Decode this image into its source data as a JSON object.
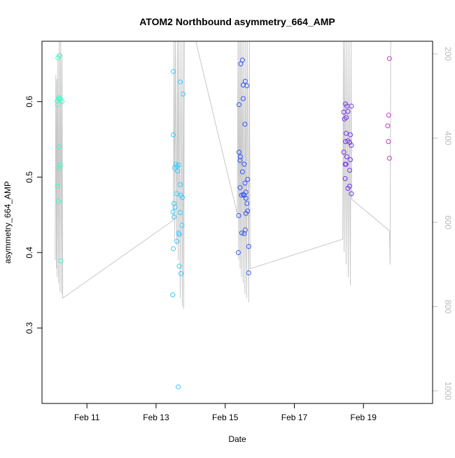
{
  "chart_data": {
    "type": "scatter",
    "title": "ATOM2 Northbound asymmetry_664_AMP",
    "xlabel": "Date",
    "ylabel": "asymmetry_664_AMP",
    "x_ticks": [
      "Feb 11",
      "Feb 13",
      "Feb 15",
      "Feb 17",
      "Feb 19"
    ],
    "x_tick_days": [
      11,
      13,
      15,
      17,
      19
    ],
    "xlim_days": [
      9.7,
      21.0
    ],
    "ylim": [
      0.2,
      0.68
    ],
    "y_ticks": [
      0.3,
      0.4,
      0.5,
      0.6
    ],
    "y2_ticks": [
      200,
      400,
      600,
      800,
      1000
    ],
    "y2lim": [
      1030,
      170
    ],
    "grid": false,
    "series": [
      {
        "color": "#33ffcc",
        "points": [
          [
            10.16,
            0.658
          ],
          [
            10.2,
            0.661
          ],
          [
            10.18,
            0.604
          ],
          [
            10.2,
            0.605
          ],
          [
            10.23,
            0.603
          ],
          [
            10.14,
            0.601
          ],
          [
            10.28,
            0.6
          ],
          [
            10.15,
            0.596
          ],
          [
            10.2,
            0.54
          ],
          [
            10.23,
            0.516
          ],
          [
            10.2,
            0.512
          ],
          [
            10.15,
            0.488
          ],
          [
            10.18,
            0.468
          ],
          [
            10.24,
            0.389
          ]
        ]
      },
      {
        "color": "#33ccff",
        "points": [
          [
            13.5,
            0.64
          ],
          [
            13.7,
            0.626
          ],
          [
            13.78,
            0.61
          ],
          [
            13.5,
            0.556
          ],
          [
            13.57,
            0.517
          ],
          [
            13.6,
            0.514
          ],
          [
            13.65,
            0.516
          ],
          [
            13.54,
            0.512
          ],
          [
            13.62,
            0.508
          ],
          [
            13.7,
            0.49
          ],
          [
            13.6,
            0.478
          ],
          [
            13.72,
            0.476
          ],
          [
            13.76,
            0.473
          ],
          [
            13.52,
            0.465
          ],
          [
            13.55,
            0.46
          ],
          [
            13.49,
            0.454
          ],
          [
            13.7,
            0.453
          ],
          [
            13.52,
            0.447
          ],
          [
            13.75,
            0.436
          ],
          [
            13.65,
            0.426
          ],
          [
            13.67,
            0.424
          ],
          [
            13.6,
            0.415
          ],
          [
            13.5,
            0.405
          ],
          [
            13.67,
            0.382
          ],
          [
            13.72,
            0.372
          ],
          [
            13.48,
            0.344
          ],
          [
            13.64,
            0.222
          ]
        ]
      },
      {
        "color": "#3355ff",
        "points": [
          [
            15.5,
            0.655
          ],
          [
            15.45,
            0.65
          ],
          [
            15.58,
            0.627
          ],
          [
            15.52,
            0.622
          ],
          [
            15.63,
            0.621
          ],
          [
            15.52,
            0.604
          ],
          [
            15.4,
            0.596
          ],
          [
            15.57,
            0.57
          ],
          [
            15.4,
            0.533
          ],
          [
            15.44,
            0.527
          ],
          [
            15.43,
            0.522
          ],
          [
            15.55,
            0.517
          ],
          [
            15.5,
            0.507
          ],
          [
            15.65,
            0.497
          ],
          [
            15.57,
            0.492
          ],
          [
            15.43,
            0.486
          ],
          [
            15.6,
            0.48
          ],
          [
            15.52,
            0.477
          ],
          [
            15.47,
            0.476
          ],
          [
            15.55,
            0.476
          ],
          [
            15.6,
            0.472
          ],
          [
            15.63,
            0.465
          ],
          [
            15.65,
            0.455
          ],
          [
            15.6,
            0.452
          ],
          [
            15.39,
            0.449
          ],
          [
            15.58,
            0.43
          ],
          [
            15.48,
            0.426
          ],
          [
            15.55,
            0.425
          ],
          [
            15.68,
            0.408
          ],
          [
            15.38,
            0.4
          ],
          [
            15.68,
            0.373
          ]
        ]
      },
      {
        "color": "#7733ee",
        "points": [
          [
            18.48,
            0.597
          ],
          [
            18.52,
            0.594
          ],
          [
            18.65,
            0.594
          ],
          [
            18.43,
            0.586
          ],
          [
            18.55,
            0.587
          ],
          [
            18.5,
            0.579
          ],
          [
            18.45,
            0.577
          ],
          [
            18.62,
            0.556
          ],
          [
            18.5,
            0.558
          ],
          [
            18.55,
            0.548
          ],
          [
            18.48,
            0.547
          ],
          [
            18.6,
            0.546
          ],
          [
            18.65,
            0.542
          ],
          [
            18.43,
            0.533
          ],
          [
            18.52,
            0.527
          ],
          [
            18.62,
            0.523
          ],
          [
            18.47,
            0.517
          ],
          [
            18.5,
            0.517
          ],
          [
            18.6,
            0.509
          ],
          [
            18.47,
            0.498
          ],
          [
            18.6,
            0.488
          ],
          [
            18.55,
            0.485
          ],
          [
            18.65,
            0.478
          ]
        ]
      },
      {
        "color": "#cc33cc",
        "points": [
          [
            19.75,
            0.657
          ],
          [
            19.73,
            0.582
          ],
          [
            19.7,
            0.568
          ],
          [
            19.72,
            0.547
          ],
          [
            19.75,
            0.525
          ]
        ]
      }
    ],
    "secondary_line": {
      "color": "#c8c8c8",
      "points": [
        [
          10.08,
          690
        ],
        [
          10.1,
          250
        ],
        [
          10.12,
          710
        ],
        [
          10.13,
          260
        ],
        [
          10.14,
          730
        ],
        [
          10.16,
          200
        ],
        [
          10.18,
          745
        ],
        [
          10.2,
          170
        ],
        [
          10.22,
          765
        ],
        [
          10.24,
          170
        ],
        [
          10.27,
          770
        ],
        [
          10.28,
          200
        ],
        [
          10.3,
          780
        ],
        [
          13.5,
          595
        ],
        [
          13.52,
          170
        ],
        [
          13.54,
          640
        ],
        [
          13.56,
          170
        ],
        [
          13.6,
          655
        ],
        [
          13.62,
          170
        ],
        [
          13.64,
          690
        ],
        [
          13.66,
          170
        ],
        [
          13.7,
          780
        ],
        [
          13.72,
          170
        ],
        [
          13.76,
          800
        ],
        [
          13.78,
          170
        ],
        [
          13.8,
          805
        ],
        [
          13.82,
          170
        ],
        [
          14.15,
          170
        ],
        [
          15.35,
          580
        ],
        [
          15.37,
          170
        ],
        [
          15.39,
          690
        ],
        [
          15.41,
          170
        ],
        [
          15.43,
          710
        ],
        [
          15.45,
          170
        ],
        [
          15.47,
          730
        ],
        [
          15.49,
          170
        ],
        [
          15.52,
          745
        ],
        [
          15.54,
          170
        ],
        [
          15.57,
          770
        ],
        [
          15.59,
          170
        ],
        [
          15.62,
          780
        ],
        [
          15.64,
          170
        ],
        [
          15.68,
          790
        ],
        [
          15.7,
          170
        ],
        [
          15.72,
          710
        ],
        [
          18.4,
          640
        ],
        [
          18.42,
          170
        ],
        [
          18.44,
          670
        ],
        [
          18.46,
          170
        ],
        [
          18.5,
          700
        ],
        [
          18.52,
          170
        ],
        [
          18.56,
          730
        ],
        [
          18.58,
          170
        ],
        [
          18.62,
          750
        ],
        [
          18.64,
          170
        ],
        [
          18.66,
          545
        ],
        [
          19.75,
          620
        ],
        [
          19.77,
          700
        ],
        [
          19.79,
          170
        ]
      ]
    }
  }
}
